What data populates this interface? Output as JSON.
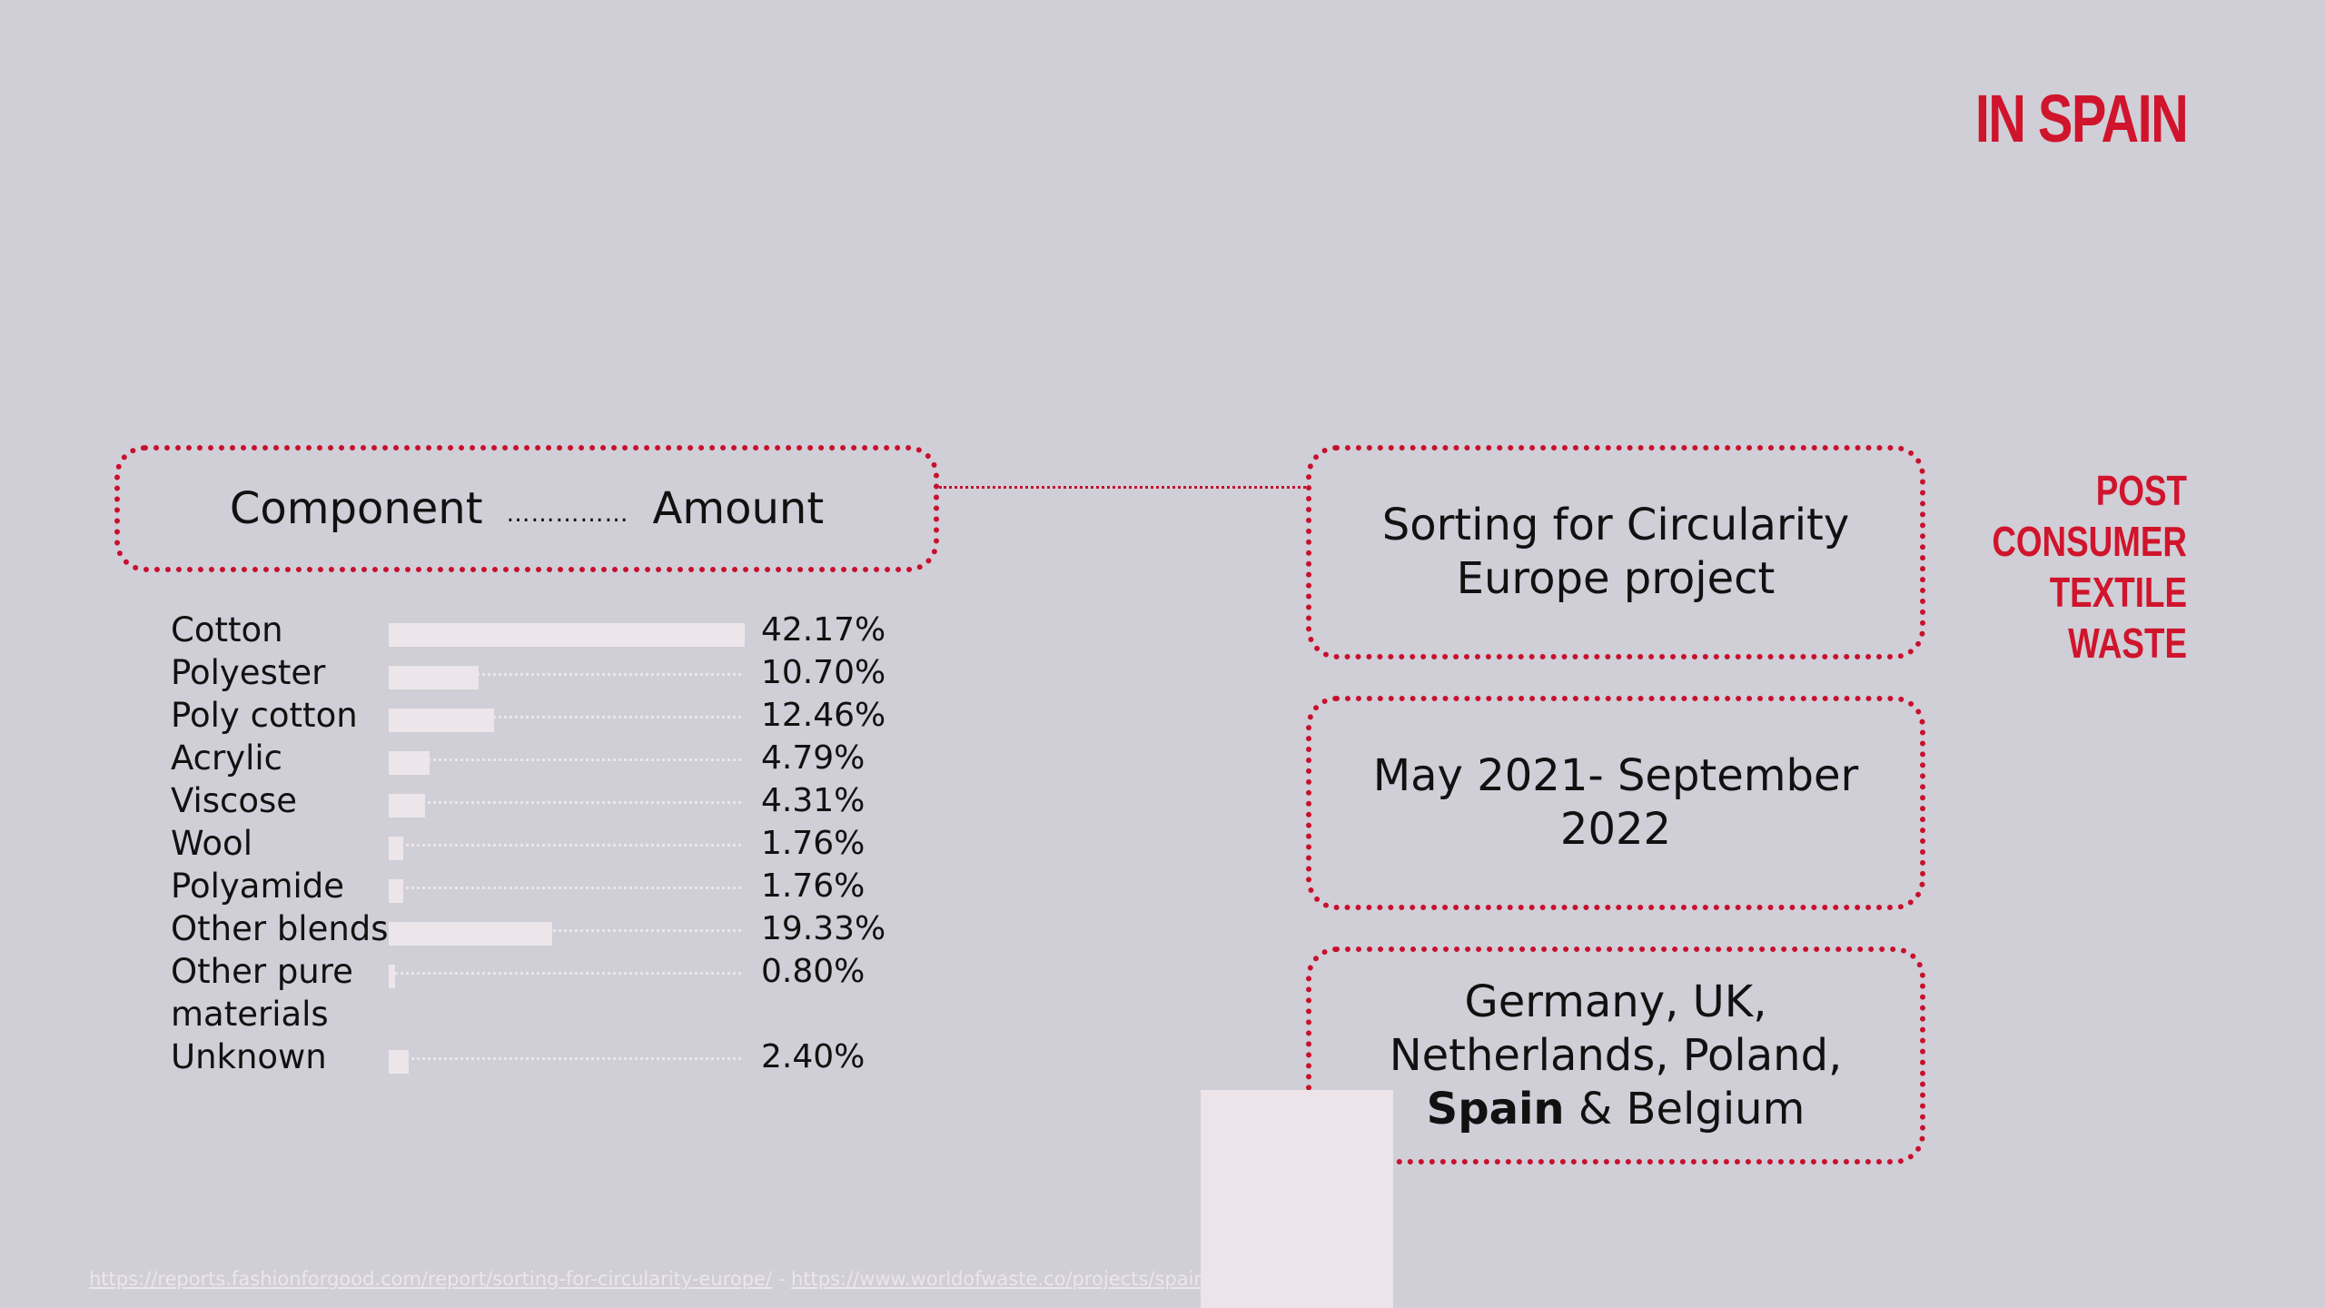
{
  "title": "IN SPAIN",
  "side_label": "POST CONSUMER TEXTILE WASTE",
  "header": {
    "col1": "Component",
    "leader": "……………",
    "col2": "Amount"
  },
  "components": [
    {
      "name": "Cotton",
      "amount": "42.17%",
      "value": 42.17
    },
    {
      "name": "Polyester",
      "amount": "10.70%",
      "value": 10.7
    },
    {
      "name": "Poly cotton",
      "amount": "12.46%",
      "value": 12.46
    },
    {
      "name": "Acrylic",
      "amount": "4.79%",
      "value": 4.79
    },
    {
      "name": "Viscose",
      "amount": "4.31%",
      "value": 4.31
    },
    {
      "name": "Wool",
      "amount": "1.76%",
      "value": 1.76
    },
    {
      "name": "Polyamide",
      "amount": "1.76%",
      "value": 1.76
    },
    {
      "name": "Other blends",
      "amount": "19.33%",
      "value": 19.33
    },
    {
      "name": "Other pure materials",
      "amount": "0.80%",
      "value": 0.8
    },
    {
      "name": "Unknown",
      "amount": "2.40%",
      "value": 2.4
    }
  ],
  "info_boxes": {
    "project": "Sorting for Circularity Europe project",
    "period": "May 2021- September 2022",
    "countries_before": "Germany, UK, Netherlands, Poland,",
    "countries_bold": "Spain",
    "countries_after": " & Belgium"
  },
  "footer": {
    "link1": "https://reports.fashionforgood.com/report/sorting-for-circularity-europe/",
    "separator": " - ",
    "link2": "https://www.worldofwaste.co/projects/spain"
  },
  "colors": {
    "accent": "#c8102e",
    "background": "#d0ced6",
    "bar": "#ece6ea"
  }
}
